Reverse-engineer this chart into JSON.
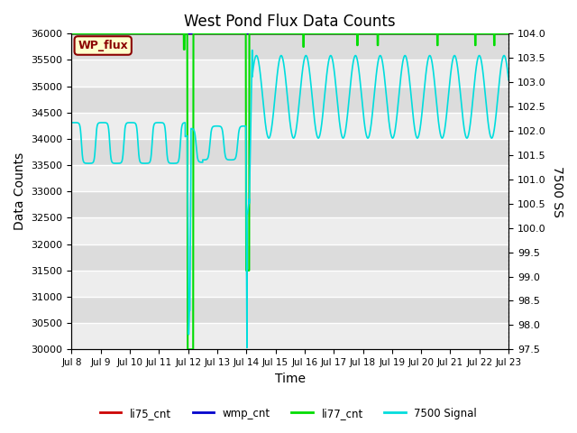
{
  "title": "West Pond Flux Data Counts",
  "xlabel": "Time",
  "ylabel_left": "Data Counts",
  "ylabel_right": "7500 SS",
  "annotation_text": "WP_flux",
  "ylim_left": [
    30000,
    36000
  ],
  "ylim_right": [
    97.5,
    104.0
  ],
  "x_tick_labels": [
    "Jul 8",
    "Jul 9",
    "Jul 10",
    "Jul 11",
    "Jul 12",
    "Jul 13",
    "Jul 14",
    "Jul 15",
    "Jul 16",
    "Jul 17",
    "Jul 18",
    "Jul 19",
    "Jul 20",
    "Jul 21",
    "Jul 22",
    "Jul 23"
  ],
  "bg_color": "#dcdcdc",
  "line_colors": {
    "li75_cnt": "#cc0000",
    "wmp_cnt": "#0000cc",
    "li77_cnt": "#00dd00",
    "signal7500": "#00dddd"
  },
  "legend_labels": [
    "li75_cnt",
    "wmp_cnt",
    "li77_cnt",
    "7500 Signal"
  ],
  "legend_colors": [
    "#cc0000",
    "#0000cc",
    "#00dd00",
    "#00dddd"
  ]
}
